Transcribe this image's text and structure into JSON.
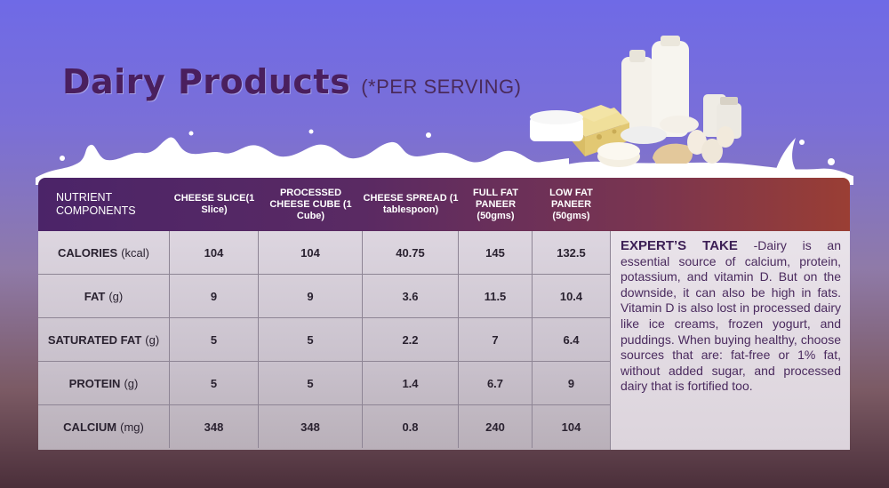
{
  "title": "Dairy Products",
  "subtitle": "(*PER SERVING)",
  "table": {
    "header": {
      "first": "NUTRIENT COMPONENTS",
      "columns": [
        "CHEESE SLICE(1 Slice)",
        "PROCESSED CHEESE CUBE (1 Cube)",
        "CHEESE SPREAD (1 tablespoon)",
        "FULL FAT PANEER (50gms)",
        "LOW FAT PANEER (50gms)"
      ]
    },
    "rows": [
      {
        "name": "CALORIES",
        "unit": "(kcal)",
        "values": [
          "104",
          "104",
          "40.75",
          "145",
          "132.5"
        ]
      },
      {
        "name": "FAT",
        "unit": "(g)",
        "values": [
          "9",
          "9",
          "3.6",
          "11.5",
          "10.4"
        ]
      },
      {
        "name": "SATURATED FAT",
        "unit": "(g)",
        "values": [
          "5",
          "5",
          "2.2",
          "7",
          "6.4"
        ]
      },
      {
        "name": "PROTEIN",
        "unit": "(g)",
        "values": [
          "5",
          "5",
          "1.4",
          "6.7",
          "9"
        ]
      },
      {
        "name": "CALCIUM",
        "unit": "(mg)",
        "values": [
          "348",
          "348",
          "0.8",
          "240",
          "104"
        ]
      }
    ]
  },
  "expert": {
    "heading": "EXPERT’S TAKE",
    "text": "-Dairy is an essential source of calcium, protein, potassium, and vitamin D. But on the downside, it can also be high in fats. Vitamin D is also lost in processed dairy like ice creams, frozen yogurt, and puddings. When buying healthy, choose sources that are: fat-free or 1% fat, without added sugar, and processed dairy that is fortified too."
  },
  "colors": {
    "title": "#4a1f5e",
    "header_start": "#4b2468",
    "header_end": "#9a3e34",
    "expert_text": "#4a2a5e"
  }
}
